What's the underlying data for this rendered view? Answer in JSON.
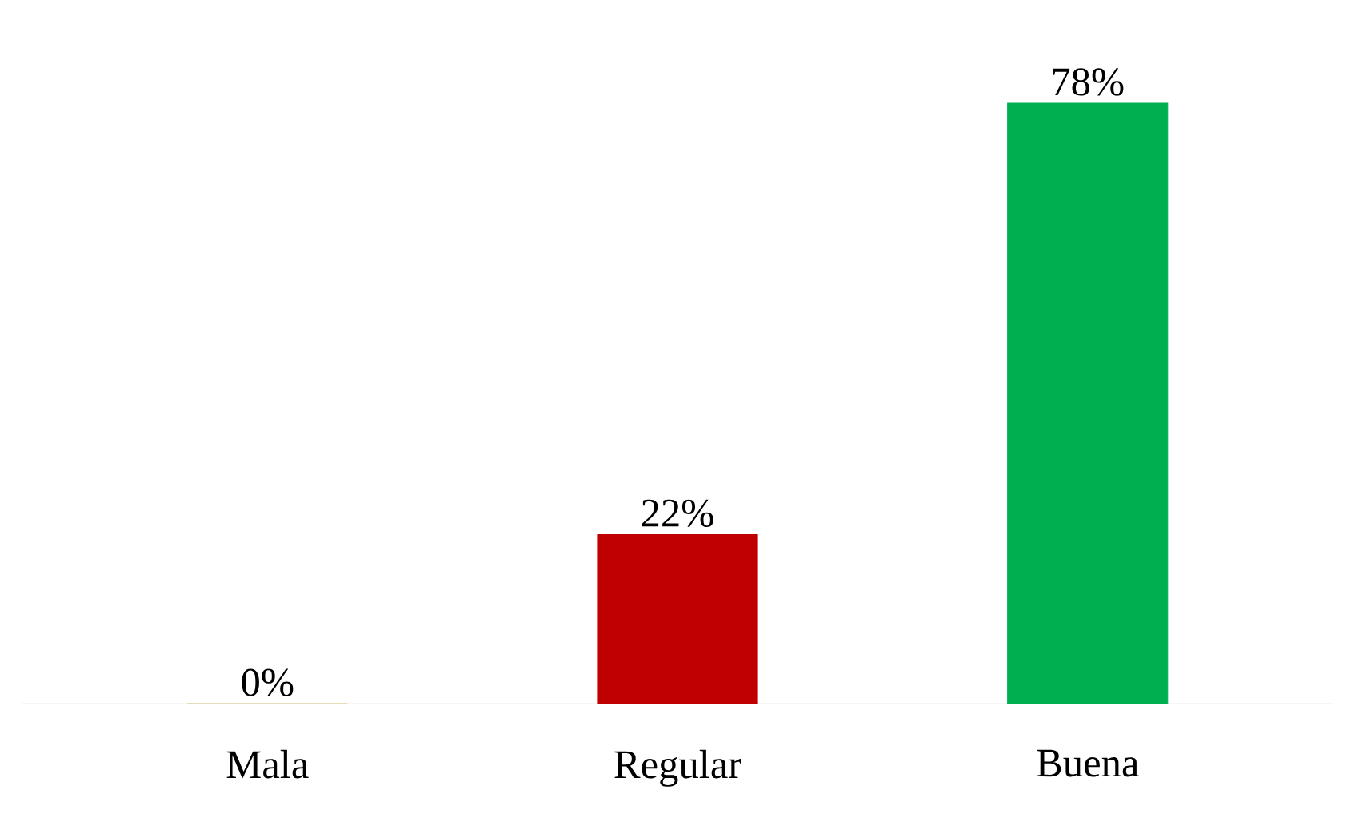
{
  "chart_data": {
    "type": "bar",
    "categories": [
      "Mala",
      "Regular",
      "Buena"
    ],
    "values": [
      0,
      22,
      78
    ],
    "colors": [
      "#c09000",
      "#c00000",
      "#00b050"
    ],
    "value_labels": [
      "0%",
      "22%",
      "78%"
    ]
  }
}
